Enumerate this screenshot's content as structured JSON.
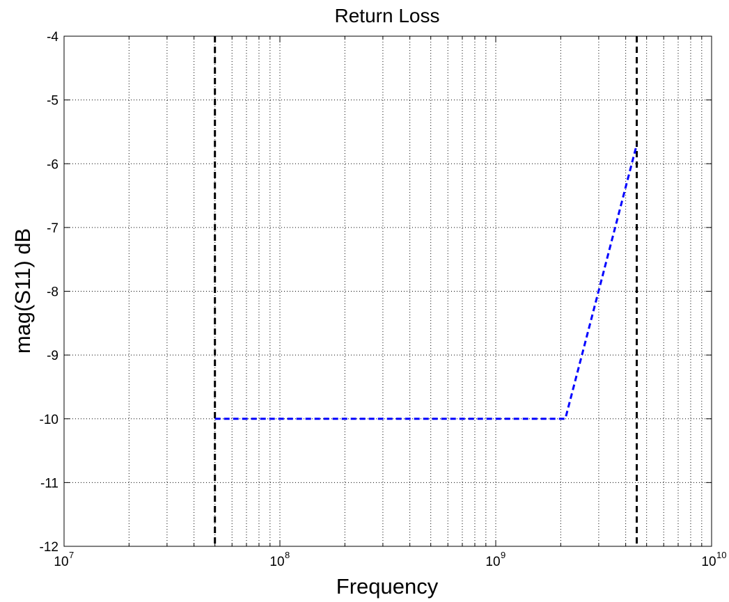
{
  "chart_data": {
    "type": "line",
    "title": "Return Loss",
    "xlabel": "Frequency",
    "ylabel": "mag(S11) dB",
    "xscale": "log",
    "xlim": [
      10000000,
      10000000000
    ],
    "ylim": [
      -12,
      -4
    ],
    "grid": true,
    "x_ticks": [
      {
        "base": "10",
        "exp": "7"
      },
      {
        "base": "10",
        "exp": "8"
      },
      {
        "base": "10",
        "exp": "9"
      },
      {
        "base": "10",
        "exp": "10"
      }
    ],
    "y_ticks": [
      "-12",
      "-11",
      "-10",
      "-9",
      "-8",
      "-7",
      "-6",
      "-5",
      "-4"
    ],
    "series": [
      {
        "style": "dashed",
        "color": "#0000ff",
        "points": [
          {
            "x": 50000000,
            "y": -10
          },
          {
            "x": 2100000000,
            "y": -10
          },
          {
            "x": 4500000000,
            "y": -5.7
          }
        ]
      }
    ],
    "vertical_lines": [
      {
        "x": 50000000,
        "style": "dashed",
        "color": "#000000"
      },
      {
        "x": 4500000000,
        "style": "dashed",
        "color": "#000000"
      }
    ]
  }
}
